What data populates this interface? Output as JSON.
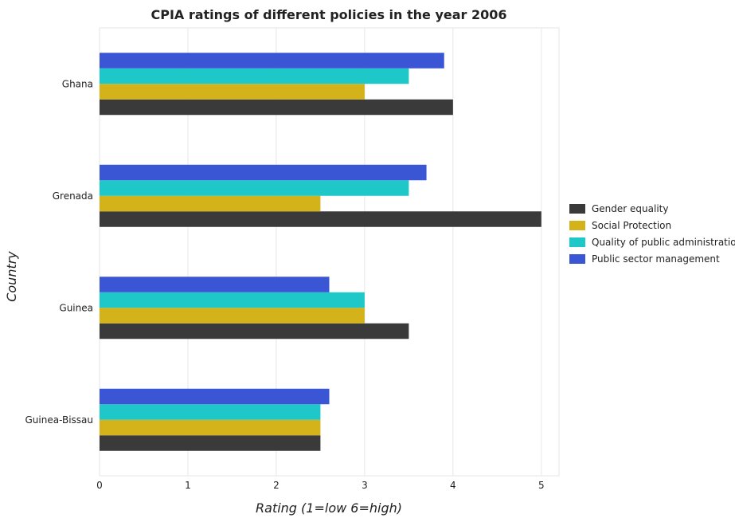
{
  "chart_data": {
    "type": "bar",
    "orientation": "horizontal",
    "title": "CPIA ratings of different policies in the year 2006",
    "xlabel": "Rating (1=low 6=high)",
    "ylabel": "Country",
    "xlim": [
      0,
      5.2
    ],
    "xticks": [
      "0",
      "1",
      "2",
      "3",
      "4",
      "5"
    ],
    "grid": true,
    "legend_position": "right",
    "categories": [
      "Ghana",
      "Grenada",
      "Guinea",
      "Guinea-Bissau"
    ],
    "series": [
      {
        "name": "Gender equality",
        "color": "#3a3a3a",
        "values": [
          4.0,
          5.0,
          3.5,
          2.5
        ]
      },
      {
        "name": "Social Protection",
        "color": "#d4b21a",
        "values": [
          3.0,
          2.5,
          3.0,
          2.5
        ]
      },
      {
        "name": "Quality of public administration",
        "color": "#1ec8c8",
        "values": [
          3.5,
          3.5,
          3.0,
          2.5
        ]
      },
      {
        "name": "Public sector management",
        "color": "#3a56d4",
        "values": [
          3.9,
          3.7,
          2.6,
          2.6
        ]
      }
    ]
  }
}
